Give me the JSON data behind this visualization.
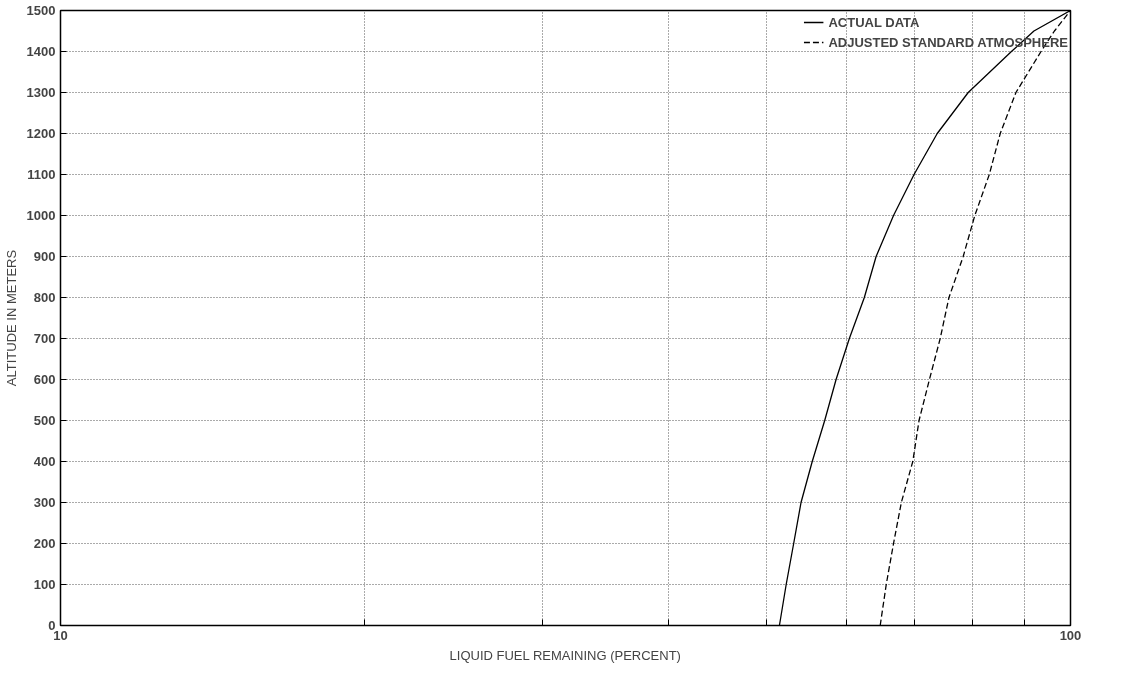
{
  "chart_data": {
    "type": "line",
    "xlabel": "LIQUID FUEL REMAINING (PERCENT)",
    "ylabel": "ALTITUDE IN METERS",
    "log": "x",
    "xlim": [
      10,
      100
    ],
    "ylim": [
      0,
      1500
    ],
    "xticks": [
      10,
      {
        "value": 20,
        "label": null
      },
      {
        "value": 30,
        "label": null
      },
      {
        "value": 40,
        "label": null
      },
      {
        "value": 50,
        "label": null
      },
      {
        "value": 60,
        "label": null
      },
      {
        "value": 70,
        "label": null
      },
      {
        "value": 80,
        "label": null
      },
      {
        "value": 90,
        "label": null
      },
      100
    ],
    "yticks": [
      0,
      100,
      200,
      300,
      400,
      500,
      600,
      700,
      800,
      900,
      1000,
      1100,
      1200,
      1300,
      1400,
      1500
    ],
    "grid": true,
    "legend": "top right",
    "series": [
      {
        "name": "ACTUAL DATA",
        "color": "#000000",
        "line_style": "solid",
        "x": [
          51.5,
          52.3,
          53.2,
          54.1,
          55.5,
          57.1,
          58.6,
          60.4,
          62.5,
          64.2,
          66.8,
          70,
          73.8,
          79.2,
          87.4,
          92,
          100
        ],
        "values": [
          0,
          100,
          200,
          300,
          400,
          500,
          600,
          700,
          800,
          900,
          1000,
          1100,
          1200,
          1300,
          1400,
          1450,
          1500
        ]
      },
      {
        "name": "ADJUSTED STANDARD ATMOSPHERE",
        "color": "#000000",
        "line_style": "dashed",
        "x": [
          64.8,
          65.7,
          66.8,
          68,
          69.8,
          70.8,
          72.5,
          74.3,
          75.8,
          78.3,
          80.4,
          83.1,
          85.2,
          88.3,
          93.5,
          96.4,
          100
        ],
        "values": [
          0,
          100,
          200,
          300,
          400,
          500,
          600,
          700,
          800,
          900,
          1000,
          1100,
          1200,
          1300,
          1400,
          1450,
          1500
        ]
      }
    ]
  }
}
